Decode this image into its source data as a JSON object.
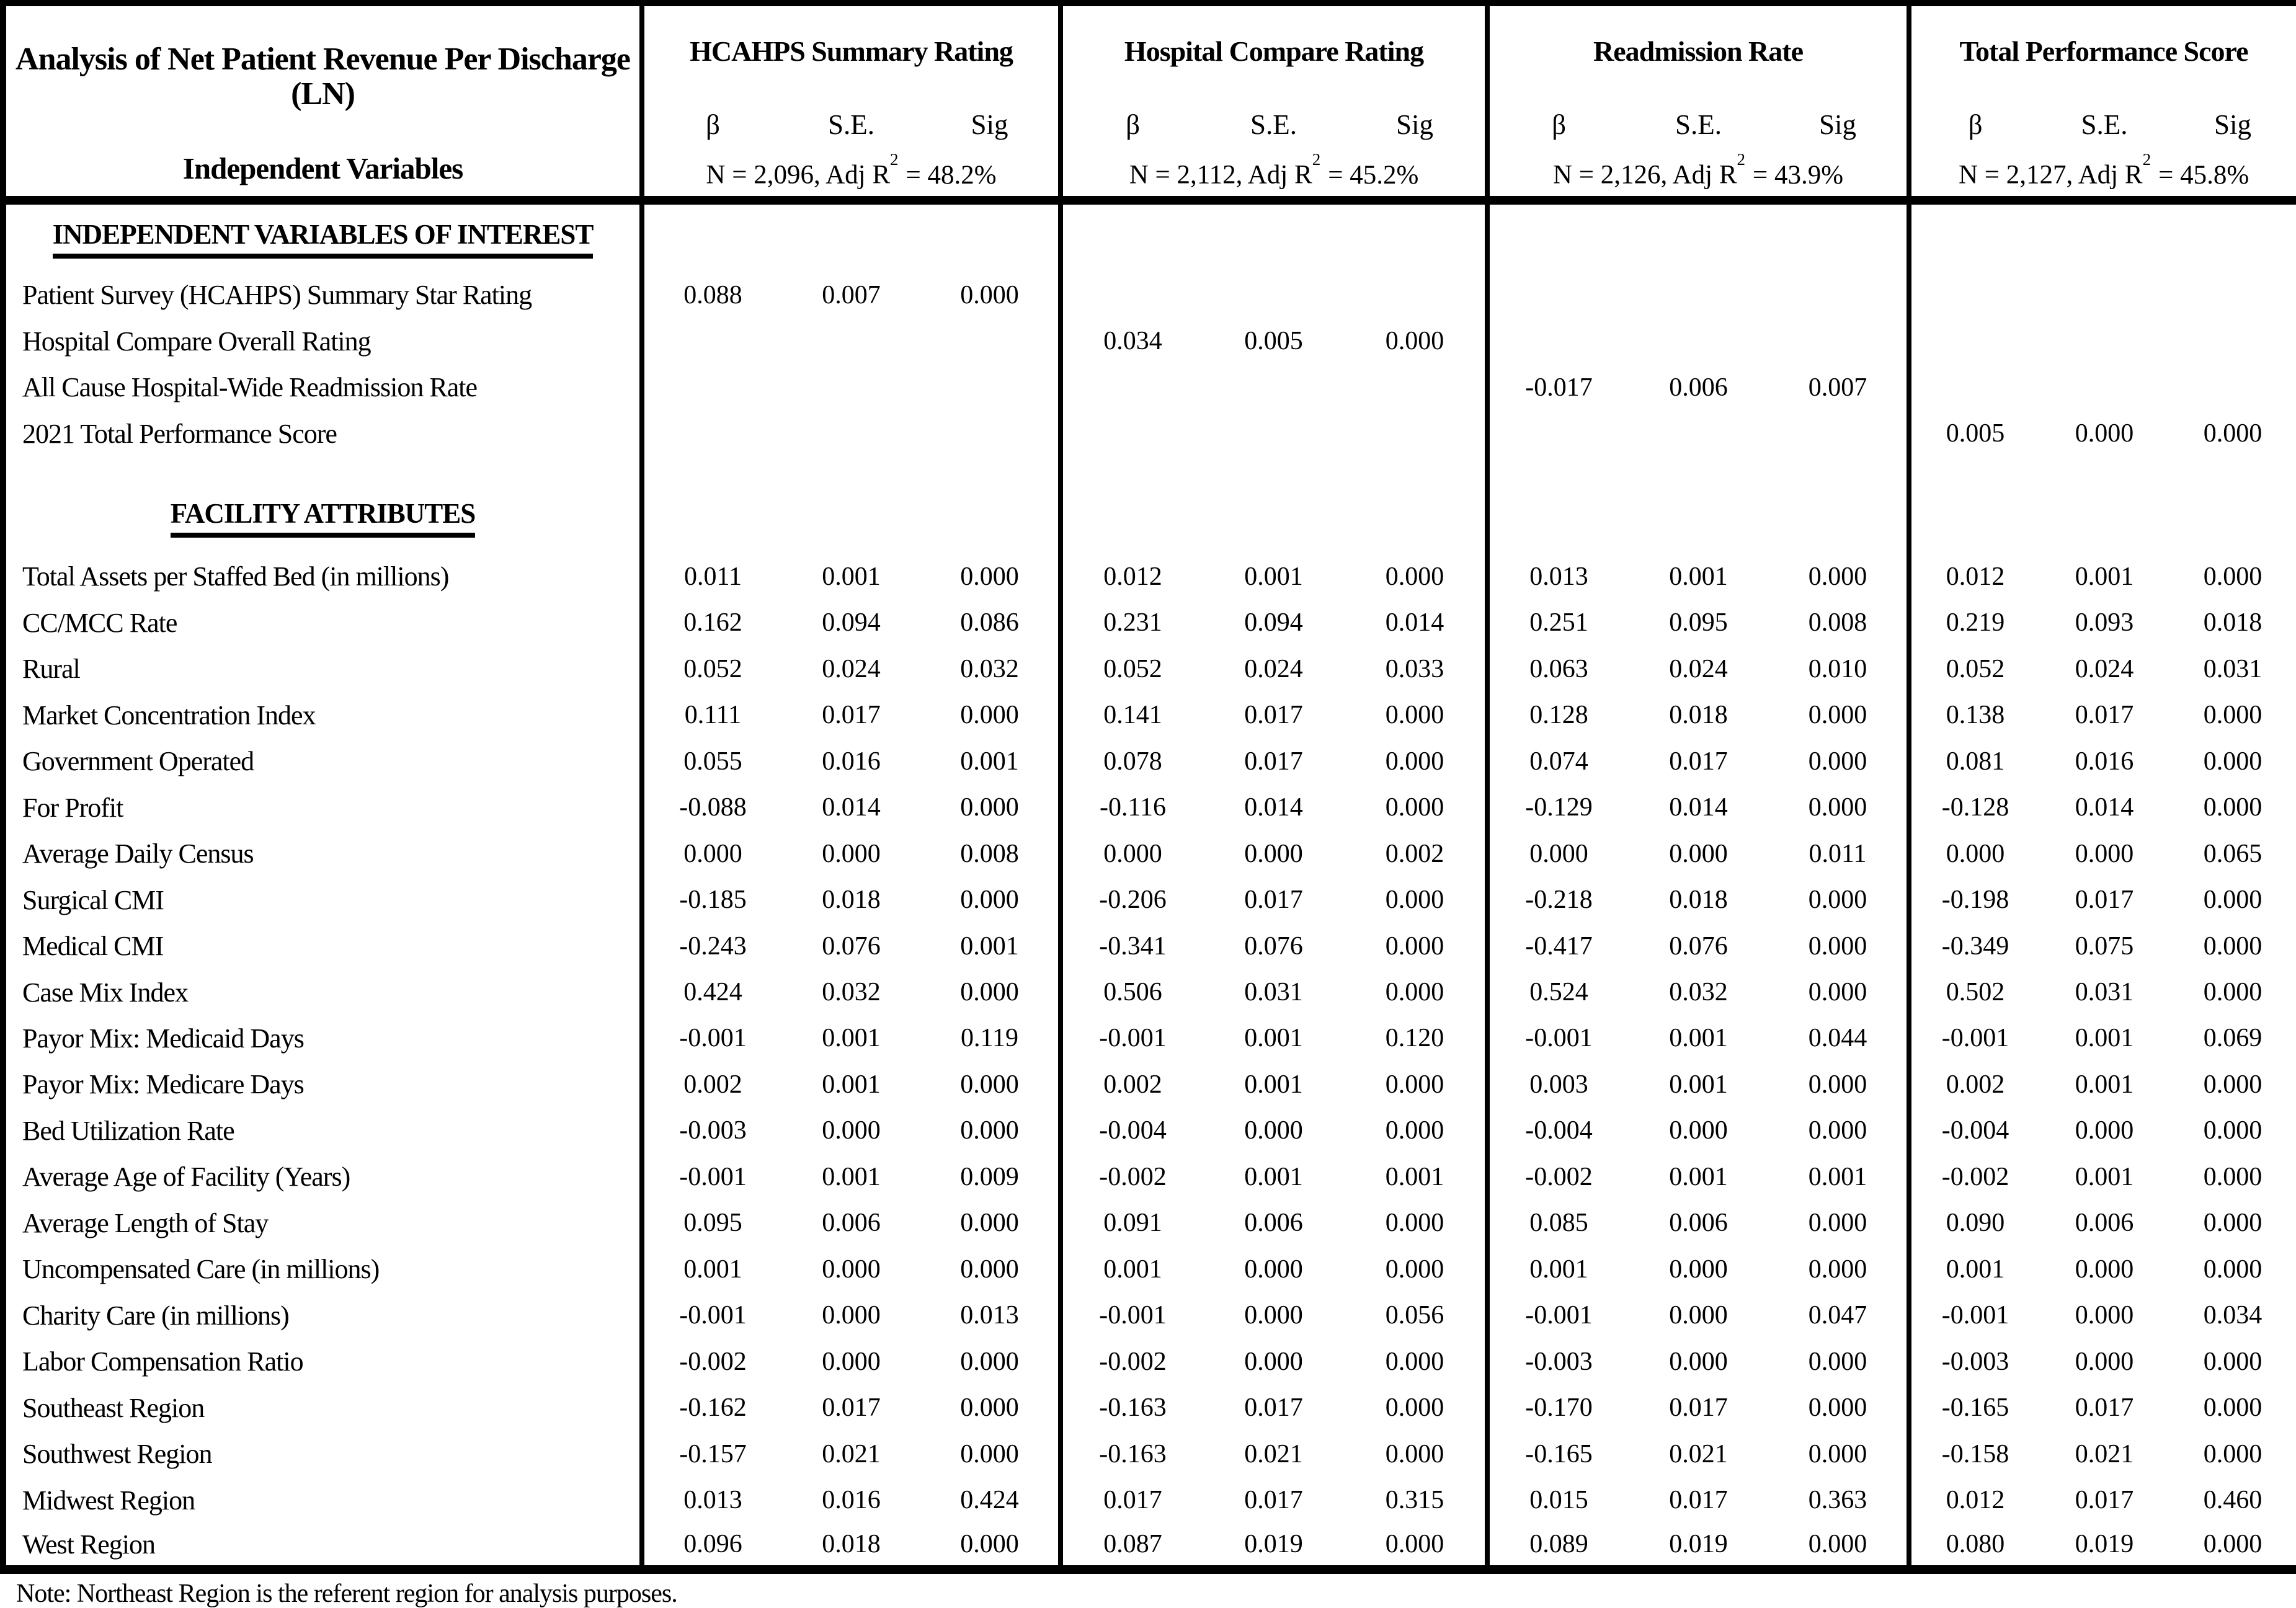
{
  "colors": {
    "background": "#ffffff",
    "text": "#000000",
    "border": "#000000"
  },
  "header": {
    "title_line1": "Analysis of Net Patient Revenue Per Discharge (LN)",
    "title_line2": "Independent Variables"
  },
  "groups": [
    {
      "title": "HCAHPS Summary Rating",
      "beta": "β",
      "se": "S.E.",
      "sig": "Sig",
      "n_prefix": "N = 2,096, Adj R",
      "n_sup": "2",
      "n_suffix": "= 48.2%"
    },
    {
      "title": "Hospital Compare Rating",
      "beta": "β",
      "se": "S.E.",
      "sig": "Sig",
      "n_prefix": "N = 2,112, Adj R",
      "n_sup": "2",
      "n_suffix": "= 45.2%"
    },
    {
      "title": "Readmission Rate",
      "beta": "β",
      "se": "S.E.",
      "sig": "Sig",
      "n_prefix": "N = 2,126, Adj R",
      "n_sup": "2",
      "n_suffix": "= 43.9%"
    },
    {
      "title": "Total Performance Score",
      "beta": "β",
      "se": "S.E.",
      "sig": "Sig",
      "n_prefix": "N = 2,127, Adj R",
      "n_sup": "2",
      "n_suffix": "= 45.8%"
    }
  ],
  "rows": [
    {
      "type": "section",
      "label": "INDEPENDENT VARIABLES OF INTEREST"
    },
    {
      "type": "data",
      "label": "Patient Survey (HCAHPS) Summary Star Rating",
      "cells": [
        [
          "0.088",
          "0.007",
          "0.000"
        ],
        [
          "",
          "",
          ""
        ],
        [
          "",
          "",
          ""
        ],
        [
          "",
          "",
          ""
        ]
      ]
    },
    {
      "type": "data",
      "label": "Hospital Compare Overall Rating",
      "cells": [
        [
          "",
          "",
          ""
        ],
        [
          "0.034",
          "0.005",
          "0.000"
        ],
        [
          "",
          "",
          ""
        ],
        [
          "",
          "",
          ""
        ]
      ]
    },
    {
      "type": "data",
      "label": "All Cause Hospital-Wide Readmission Rate",
      "cells": [
        [
          "",
          "",
          ""
        ],
        [
          "",
          "",
          ""
        ],
        [
          "-0.017",
          "0.006",
          "0.007"
        ],
        [
          "",
          "",
          ""
        ]
      ]
    },
    {
      "type": "data",
      "label": "2021 Total Performance Score",
      "cells": [
        [
          "",
          "",
          ""
        ],
        [
          "",
          "",
          ""
        ],
        [
          "",
          "",
          ""
        ],
        [
          "0.005",
          "0.000",
          "0.000"
        ]
      ]
    },
    {
      "type": "spacer",
      "label": ""
    },
    {
      "type": "section",
      "label": "FACILITY ATTRIBUTES"
    },
    {
      "type": "data",
      "label": "Total Assets per Staffed Bed (in millions)",
      "cells": [
        [
          "0.011",
          "0.001",
          "0.000"
        ],
        [
          "0.012",
          "0.001",
          "0.000"
        ],
        [
          "0.013",
          "0.001",
          "0.000"
        ],
        [
          "0.012",
          "0.001",
          "0.000"
        ]
      ]
    },
    {
      "type": "data",
      "label": "CC/MCC Rate",
      "cells": [
        [
          "0.162",
          "0.094",
          "0.086"
        ],
        [
          "0.231",
          "0.094",
          "0.014"
        ],
        [
          "0.251",
          "0.095",
          "0.008"
        ],
        [
          "0.219",
          "0.093",
          "0.018"
        ]
      ]
    },
    {
      "type": "data",
      "label": "Rural",
      "cells": [
        [
          "0.052",
          "0.024",
          "0.032"
        ],
        [
          "0.052",
          "0.024",
          "0.033"
        ],
        [
          "0.063",
          "0.024",
          "0.010"
        ],
        [
          "0.052",
          "0.024",
          "0.031"
        ]
      ]
    },
    {
      "type": "data",
      "label": "Market Concentration Index",
      "cells": [
        [
          "0.111",
          "0.017",
          "0.000"
        ],
        [
          "0.141",
          "0.017",
          "0.000"
        ],
        [
          "0.128",
          "0.018",
          "0.000"
        ],
        [
          "0.138",
          "0.017",
          "0.000"
        ]
      ]
    },
    {
      "type": "data",
      "label": "Government Operated",
      "cells": [
        [
          "0.055",
          "0.016",
          "0.001"
        ],
        [
          "0.078",
          "0.017",
          "0.000"
        ],
        [
          "0.074",
          "0.017",
          "0.000"
        ],
        [
          "0.081",
          "0.016",
          "0.000"
        ]
      ]
    },
    {
      "type": "data",
      "label": "For Profit",
      "cells": [
        [
          "-0.088",
          "0.014",
          "0.000"
        ],
        [
          "-0.116",
          "0.014",
          "0.000"
        ],
        [
          "-0.129",
          "0.014",
          "0.000"
        ],
        [
          "-0.128",
          "0.014",
          "0.000"
        ]
      ]
    },
    {
      "type": "data",
      "label": "Average Daily Census",
      "cells": [
        [
          "0.000",
          "0.000",
          "0.008"
        ],
        [
          "0.000",
          "0.000",
          "0.002"
        ],
        [
          "0.000",
          "0.000",
          "0.011"
        ],
        [
          "0.000",
          "0.000",
          "0.065"
        ]
      ]
    },
    {
      "type": "data",
      "label": "Surgical CMI",
      "cells": [
        [
          "-0.185",
          "0.018",
          "0.000"
        ],
        [
          "-0.206",
          "0.017",
          "0.000"
        ],
        [
          "-0.218",
          "0.018",
          "0.000"
        ],
        [
          "-0.198",
          "0.017",
          "0.000"
        ]
      ]
    },
    {
      "type": "data",
      "label": "Medical CMI",
      "cells": [
        [
          "-0.243",
          "0.076",
          "0.001"
        ],
        [
          "-0.341",
          "0.076",
          "0.000"
        ],
        [
          "-0.417",
          "0.076",
          "0.000"
        ],
        [
          "-0.349",
          "0.075",
          "0.000"
        ]
      ]
    },
    {
      "type": "data",
      "label": "Case Mix Index",
      "cells": [
        [
          "0.424",
          "0.032",
          "0.000"
        ],
        [
          "0.506",
          "0.031",
          "0.000"
        ],
        [
          "0.524",
          "0.032",
          "0.000"
        ],
        [
          "0.502",
          "0.031",
          "0.000"
        ]
      ]
    },
    {
      "type": "data",
      "label": "Payor Mix: Medicaid Days",
      "cells": [
        [
          "-0.001",
          "0.001",
          "0.119"
        ],
        [
          "-0.001",
          "0.001",
          "0.120"
        ],
        [
          "-0.001",
          "0.001",
          "0.044"
        ],
        [
          "-0.001",
          "0.001",
          "0.069"
        ]
      ]
    },
    {
      "type": "data",
      "label": "Payor Mix: Medicare Days",
      "cells": [
        [
          "0.002",
          "0.001",
          "0.000"
        ],
        [
          "0.002",
          "0.001",
          "0.000"
        ],
        [
          "0.003",
          "0.001",
          "0.000"
        ],
        [
          "0.002",
          "0.001",
          "0.000"
        ]
      ]
    },
    {
      "type": "data",
      "label": "Bed Utilization Rate",
      "cells": [
        [
          "-0.003",
          "0.000",
          "0.000"
        ],
        [
          "-0.004",
          "0.000",
          "0.000"
        ],
        [
          "-0.004",
          "0.000",
          "0.000"
        ],
        [
          "-0.004",
          "0.000",
          "0.000"
        ]
      ]
    },
    {
      "type": "data",
      "label": "Average Age of Facility (Years)",
      "cells": [
        [
          "-0.001",
          "0.001",
          "0.009"
        ],
        [
          "-0.002",
          "0.001",
          "0.001"
        ],
        [
          "-0.002",
          "0.001",
          "0.001"
        ],
        [
          "-0.002",
          "0.001",
          "0.000"
        ]
      ]
    },
    {
      "type": "data",
      "label": "Average Length of Stay",
      "cells": [
        [
          "0.095",
          "0.006",
          "0.000"
        ],
        [
          "0.091",
          "0.006",
          "0.000"
        ],
        [
          "0.085",
          "0.006",
          "0.000"
        ],
        [
          "0.090",
          "0.006",
          "0.000"
        ]
      ]
    },
    {
      "type": "data",
      "label": "Uncompensated Care (in millions)",
      "cells": [
        [
          "0.001",
          "0.000",
          "0.000"
        ],
        [
          "0.001",
          "0.000",
          "0.000"
        ],
        [
          "0.001",
          "0.000",
          "0.000"
        ],
        [
          "0.001",
          "0.000",
          "0.000"
        ]
      ]
    },
    {
      "type": "data",
      "label": "Charity Care (in millions)",
      "cells": [
        [
          "-0.001",
          "0.000",
          "0.013"
        ],
        [
          "-0.001",
          "0.000",
          "0.056"
        ],
        [
          "-0.001",
          "0.000",
          "0.047"
        ],
        [
          "-0.001",
          "0.000",
          "0.034"
        ]
      ]
    },
    {
      "type": "data",
      "label": "Labor Compensation Ratio",
      "cells": [
        [
          "-0.002",
          "0.000",
          "0.000"
        ],
        [
          "-0.002",
          "0.000",
          "0.000"
        ],
        [
          "-0.003",
          "0.000",
          "0.000"
        ],
        [
          "-0.003",
          "0.000",
          "0.000"
        ]
      ]
    },
    {
      "type": "data",
      "label": "Southeast Region",
      "cells": [
        [
          "-0.162",
          "0.017",
          "0.000"
        ],
        [
          "-0.163",
          "0.017",
          "0.000"
        ],
        [
          "-0.170",
          "0.017",
          "0.000"
        ],
        [
          "-0.165",
          "0.017",
          "0.000"
        ]
      ]
    },
    {
      "type": "data",
      "label": "Southwest Region",
      "cells": [
        [
          "-0.157",
          "0.021",
          "0.000"
        ],
        [
          "-0.163",
          "0.021",
          "0.000"
        ],
        [
          "-0.165",
          "0.021",
          "0.000"
        ],
        [
          "-0.158",
          "0.021",
          "0.000"
        ]
      ]
    },
    {
      "type": "data",
      "label": "Midwest Region",
      "cells": [
        [
          "0.013",
          "0.016",
          "0.424"
        ],
        [
          "0.017",
          "0.017",
          "0.315"
        ],
        [
          "0.015",
          "0.017",
          "0.363"
        ],
        [
          "0.012",
          "0.017",
          "0.460"
        ]
      ]
    },
    {
      "type": "data",
      "label": "West Region",
      "cells": [
        [
          "0.096",
          "0.018",
          "0.000"
        ],
        [
          "0.087",
          "0.019",
          "0.000"
        ],
        [
          "0.089",
          "0.019",
          "0.000"
        ],
        [
          "0.080",
          "0.019",
          "0.000"
        ]
      ]
    }
  ],
  "note": "Note: Northeast Region is the referent region for analysis purposes."
}
